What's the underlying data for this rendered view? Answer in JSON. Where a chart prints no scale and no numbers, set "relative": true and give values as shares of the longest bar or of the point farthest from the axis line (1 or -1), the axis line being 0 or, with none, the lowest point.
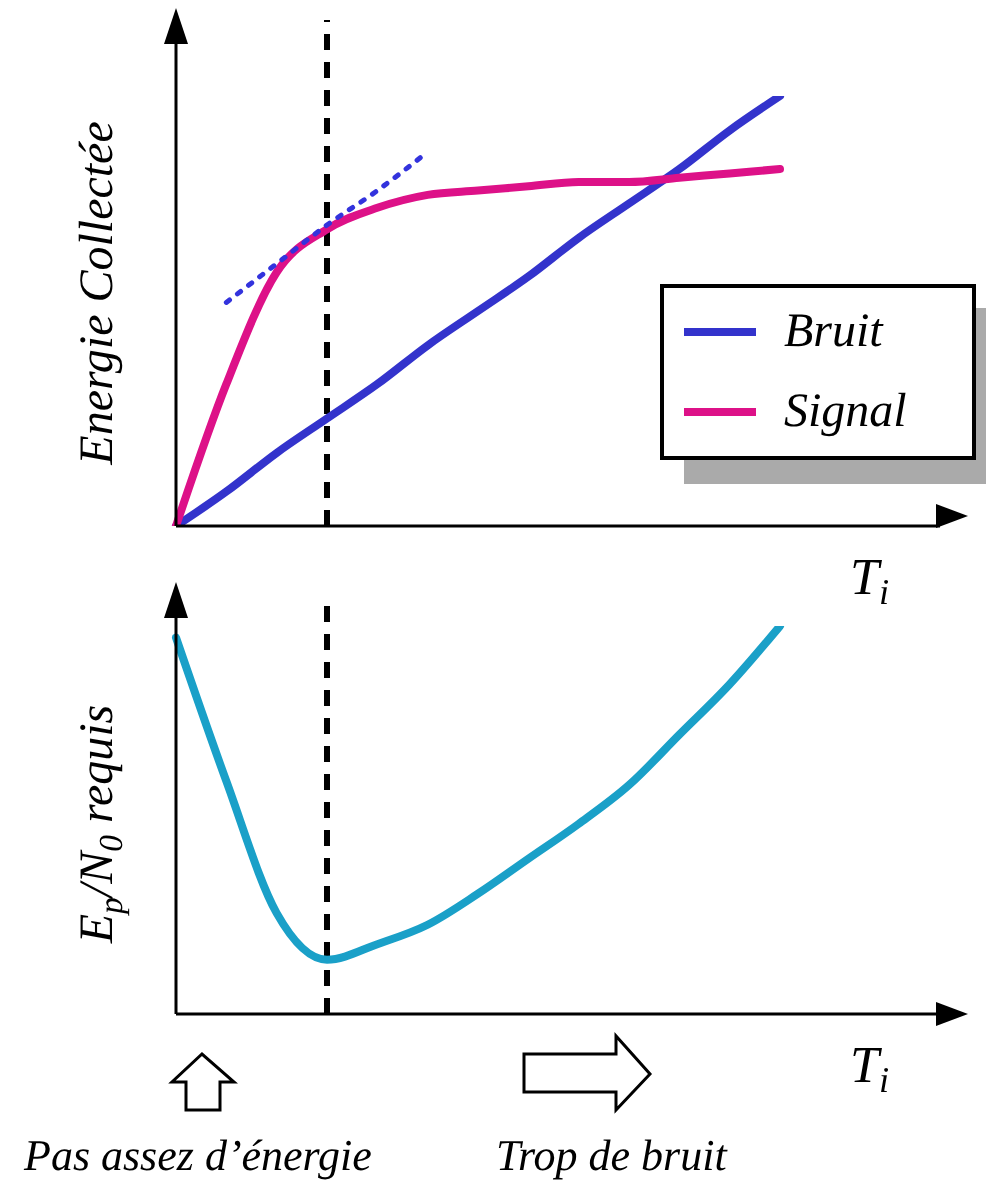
{
  "chart_data": [
    {
      "type": "line",
      "ylabel": "Energie Collectée",
      "xlabel": "T$_{i}$",
      "relative": true,
      "legend": "right",
      "categories": [
        null,
        null,
        null,
        null,
        null,
        null,
        null,
        null,
        null,
        null,
        null,
        null,
        null
      ],
      "series": [
        {
          "name": "Bruit",
          "color": "#3333cc",
          "values": [
            0,
            0.08,
            0.17,
            0.25,
            0.33,
            0.42,
            0.5,
            0.58,
            0.67,
            0.75,
            0.83,
            0.92,
            1
          ]
        },
        {
          "name": "Signal",
          "color": "#dd1188",
          "values": [
            0,
            0.33,
            0.59,
            0.69,
            0.74,
            0.77,
            0.78,
            0.79,
            0.8,
            0.8,
            0.81,
            0.82,
            0.83
          ]
        },
        {
          "color": "#3333dd",
          "line_style": "dotted",
          "values": [
            null,
            0.52,
            0.61,
            0.7,
            0.78,
            0.87,
            null,
            null,
            null,
            null,
            null,
            null,
            null
          ]
        }
      ]
    },
    {
      "type": "line",
      "ylabel": "E$_{p}$/N$_{0}$ requis",
      "xlabel": "T$_{i}$",
      "relative": true,
      "legend": false,
      "categories": [
        null,
        null,
        null,
        null,
        null,
        null,
        null,
        null,
        null,
        null,
        null,
        null,
        null
      ],
      "annotations": [
        "Pas assez d’énergie",
        "Trop de bruit"
      ],
      "series": [
        {
          "color": "#1aa0c8",
          "values": [
            0.97,
            0.6,
            0.26,
            0.14,
            0.18,
            0.23,
            0.31,
            0.4,
            0.49,
            0.59,
            0.72,
            0.85,
            1
          ]
        }
      ]
    }
  ]
}
